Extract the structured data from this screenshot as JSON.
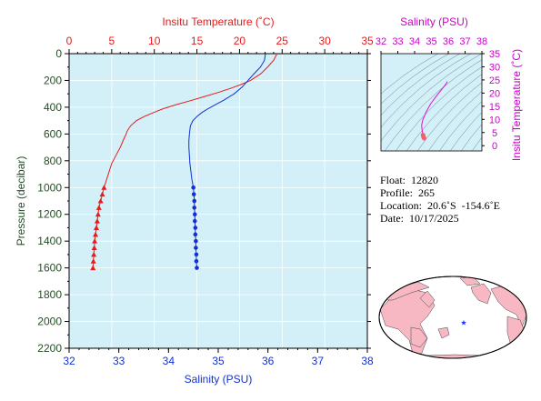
{
  "chart_data": [
    {
      "type": "line",
      "name": "profile",
      "top_axis_label": "Insitu Temperature (˚C)",
      "bottom_axis_label": "Salinity (PSU)",
      "left_axis_label": "Pressure (decibar)",
      "temp_range": [
        0,
        35
      ],
      "temp_ticks": [
        "0",
        "5",
        "10",
        "15",
        "20",
        "25",
        "30",
        "35"
      ],
      "sal_range": [
        32,
        38
      ],
      "sal_ticks": [
        "32",
        "33",
        "34",
        "35",
        "36",
        "37",
        "38"
      ],
      "pressure_range": [
        0,
        2200
      ],
      "pressure_ticks": [
        "0",
        "200",
        "400",
        "600",
        "800",
        "1000",
        "1200",
        "1400",
        "1600",
        "1800",
        "2000",
        "2200"
      ],
      "temp_color": "#e81a1a",
      "sal_color": "#1030d8",
      "background": "#d3eff8",
      "temperature_profile": {
        "pressure": [
          0,
          50,
          100,
          150,
          200,
          230,
          260,
          290,
          320,
          350,
          380,
          410,
          440,
          470,
          500,
          540,
          580,
          600,
          640,
          700,
          760,
          820,
          880,
          940,
          1000
        ],
        "temperature": [
          24.4,
          24.0,
          23.3,
          22.5,
          21.3,
          20.2,
          18.9,
          17.5,
          15.9,
          14.3,
          12.6,
          11.1,
          9.9,
          8.8,
          7.9,
          7.2,
          6.8,
          6.7,
          6.4,
          6.0,
          5.5,
          5.0,
          4.7,
          4.4,
          4.1
        ]
      },
      "temperature_points": {
        "pressure": [
          1000,
          1050,
          1100,
          1150,
          1200,
          1250,
          1300,
          1350,
          1400,
          1450,
          1500,
          1550,
          1600
        ],
        "temperature": [
          4.1,
          3.9,
          3.7,
          3.5,
          3.4,
          3.3,
          3.2,
          3.1,
          3.0,
          2.95,
          2.9,
          2.85,
          2.8
        ]
      },
      "salinity_profile": {
        "pressure": [
          0,
          50,
          100,
          150,
          200,
          250,
          300,
          350,
          380,
          410,
          440,
          470,
          500,
          540,
          600,
          650,
          700,
          760,
          820,
          880,
          940,
          1000
        ],
        "salinity": [
          35.95,
          35.93,
          35.85,
          35.72,
          35.6,
          35.48,
          35.32,
          35.1,
          34.95,
          34.8,
          34.67,
          34.57,
          34.49,
          34.44,
          34.42,
          34.41,
          34.41,
          34.42,
          34.43,
          34.45,
          34.47,
          34.5
        ]
      },
      "salinity_points": {
        "pressure": [
          1000,
          1050,
          1100,
          1150,
          1200,
          1250,
          1300,
          1350,
          1400,
          1450,
          1500,
          1550,
          1600
        ],
        "salinity": [
          34.5,
          34.51,
          34.52,
          34.52,
          34.53,
          34.53,
          34.54,
          34.54,
          34.55,
          34.55,
          34.56,
          34.56,
          34.57
        ]
      }
    },
    {
      "type": "line",
      "name": "ts-diagram",
      "top_axis_label": "Salinity (PSU)",
      "right_axis_label": "Insitu Temperature (˚C)",
      "sal_range": [
        32,
        38
      ],
      "sal_ticks": [
        "32",
        "33",
        "34",
        "35",
        "36",
        "37",
        "38"
      ],
      "temp_range": [
        -2,
        35
      ],
      "temp_ticks": [
        "0",
        "5",
        "10",
        "15",
        "20",
        "25",
        "30",
        "35"
      ],
      "color": "#e010d0",
      "curve": {
        "salinity": [
          35.95,
          35.85,
          35.6,
          35.3,
          34.95,
          34.67,
          34.49,
          34.42,
          34.43,
          34.47,
          34.5
        ],
        "temperature": [
          24.4,
          23.3,
          21.3,
          18.9,
          15.9,
          12.6,
          9.9,
          7.9,
          6.7,
          5.0,
          4.1
        ]
      },
      "points": {
        "salinity": [
          34.5,
          34.51,
          34.52,
          34.53,
          34.54,
          34.55,
          34.56,
          34.57
        ],
        "temperature": [
          4.1,
          3.8,
          3.5,
          3.3,
          3.1,
          3.0,
          2.9,
          2.8
        ]
      }
    }
  ],
  "info": {
    "float": "Float:  12820",
    "profile": "Profile:  265",
    "location": "Location:  20.6˚S  -154.6˚E",
    "date": "Date:  10/17/2025"
  },
  "map": {
    "ocean_color": "#ffffff",
    "land_color": "#f7b8c4",
    "marker_color": "#1a34ff"
  }
}
